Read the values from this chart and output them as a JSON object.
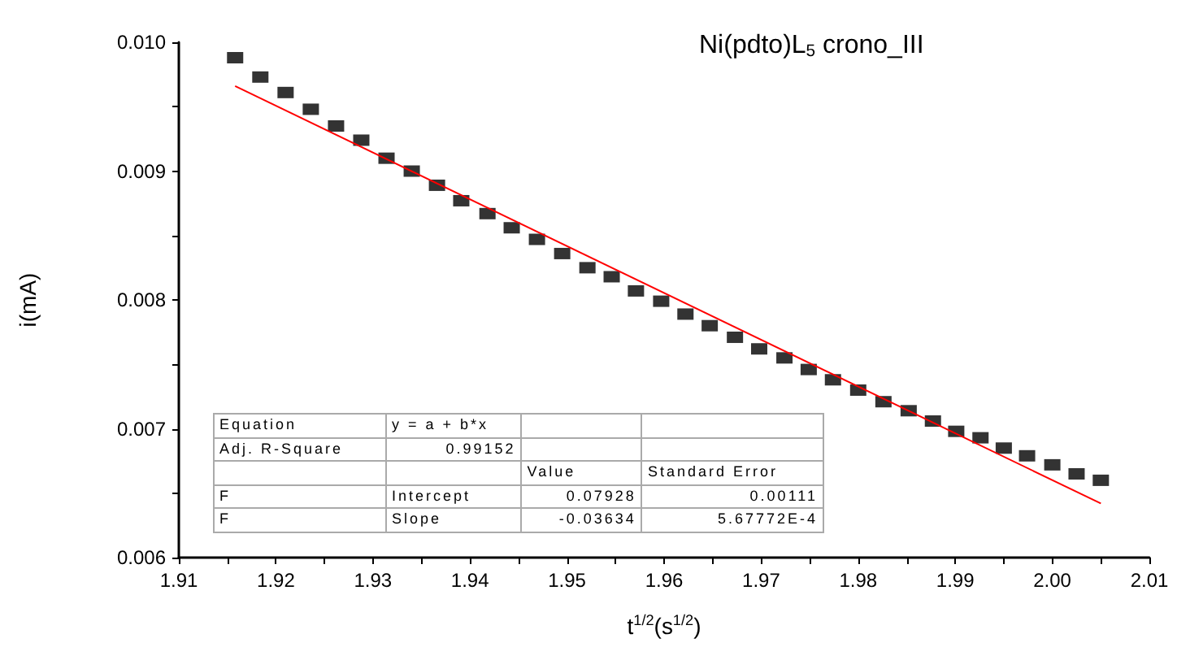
{
  "chart_data": {
    "type": "scatter",
    "title": "Ni(pdto)L$_{5}$ crono_III",
    "xlabel": "t$^{1/2}$(s$^{1/2}$)",
    "ylabel": "i(mA)",
    "xlim": [
      1.91,
      2.01
    ],
    "xticks": [
      1.91,
      {
        "value": 1.915,
        "label": null
      },
      1.92,
      {
        "value": 1.925,
        "label": null
      },
      1.93,
      {
        "value": 1.935,
        "label": null
      },
      1.94,
      {
        "value": 1.945,
        "label": null
      },
      1.95,
      {
        "value": 1.955,
        "label": null
      },
      1.96,
      {
        "value": 1.965,
        "label": null
      },
      1.97,
      {
        "value": 1.975,
        "label": null
      },
      1.98,
      {
        "value": 1.985,
        "label": null
      },
      1.99,
      {
        "value": 1.995,
        "label": null
      },
      {
        "value": 2,
        "label": "2.00"
      },
      {
        "value": 2.005,
        "label": null
      },
      2.01
    ],
    "ylim": [
      0.006,
      0.01
    ],
    "yticks": [
      0.006,
      {
        "value": 0.0065,
        "label": null
      },
      0.007,
      {
        "value": 0.0075,
        "label": null
      },
      0.008,
      {
        "value": 0.0085,
        "label": null
      },
      0.009,
      {
        "value": 0.0095,
        "label": null
      },
      {
        "value": 0.01,
        "label": "0.010"
      }
    ],
    "grid": false,
    "marker": "square",
    "series": [
      {
        "color": "#000000",
        "x": [
          1.9158,
          1.9184,
          1.921,
          1.9236,
          1.9262,
          1.9288,
          1.9314,
          1.934,
          1.9366,
          1.9391,
          1.9418,
          1.9443,
          1.9469,
          1.9495,
          1.9521,
          1.9546,
          1.9571,
          1.9597,
          1.9622,
          1.9647,
          1.9673,
          1.9698,
          1.9724,
          1.9749,
          1.9774,
          1.98,
          1.9826,
          1.9852,
          1.9877,
          1.9901,
          1.9926,
          1.995,
          1.9974,
          2.0,
          2.0025,
          2.005
        ],
        "values": [
          0.00988,
          0.00973,
          0.00961,
          0.00948,
          0.00935,
          0.00924,
          0.0091,
          0.009,
          0.00889,
          0.00877,
          0.00867,
          0.00856,
          0.00847,
          0.00836,
          0.00825,
          0.00818,
          0.00807,
          0.00799,
          0.00789,
          0.0078,
          0.00771,
          0.00762,
          0.00755,
          0.00746,
          0.00738,
          0.0073,
          0.00721,
          0.00714,
          0.00706,
          0.00698,
          0.00693,
          0.00685,
          0.00679,
          0.00672,
          0.00665,
          0.0066
        ]
      },
      {
        "type": "line",
        "color": "#ff0000",
        "marker": "none",
        "x": [
          1.9158,
          2.005
        ],
        "values": [
          0.00966,
          0.00642
        ]
      }
    ],
    "annotations": [
      "Equation\ty = a + b*x\t\t",
      "Adj. R-Square\t0.99152\t\t",
      "\t\tValue\tStandard Error",
      "F\tIntercept\t0.07928\t0.00111",
      "F\tSlope\t-0.03634\t5.67772E-4"
    ]
  }
}
